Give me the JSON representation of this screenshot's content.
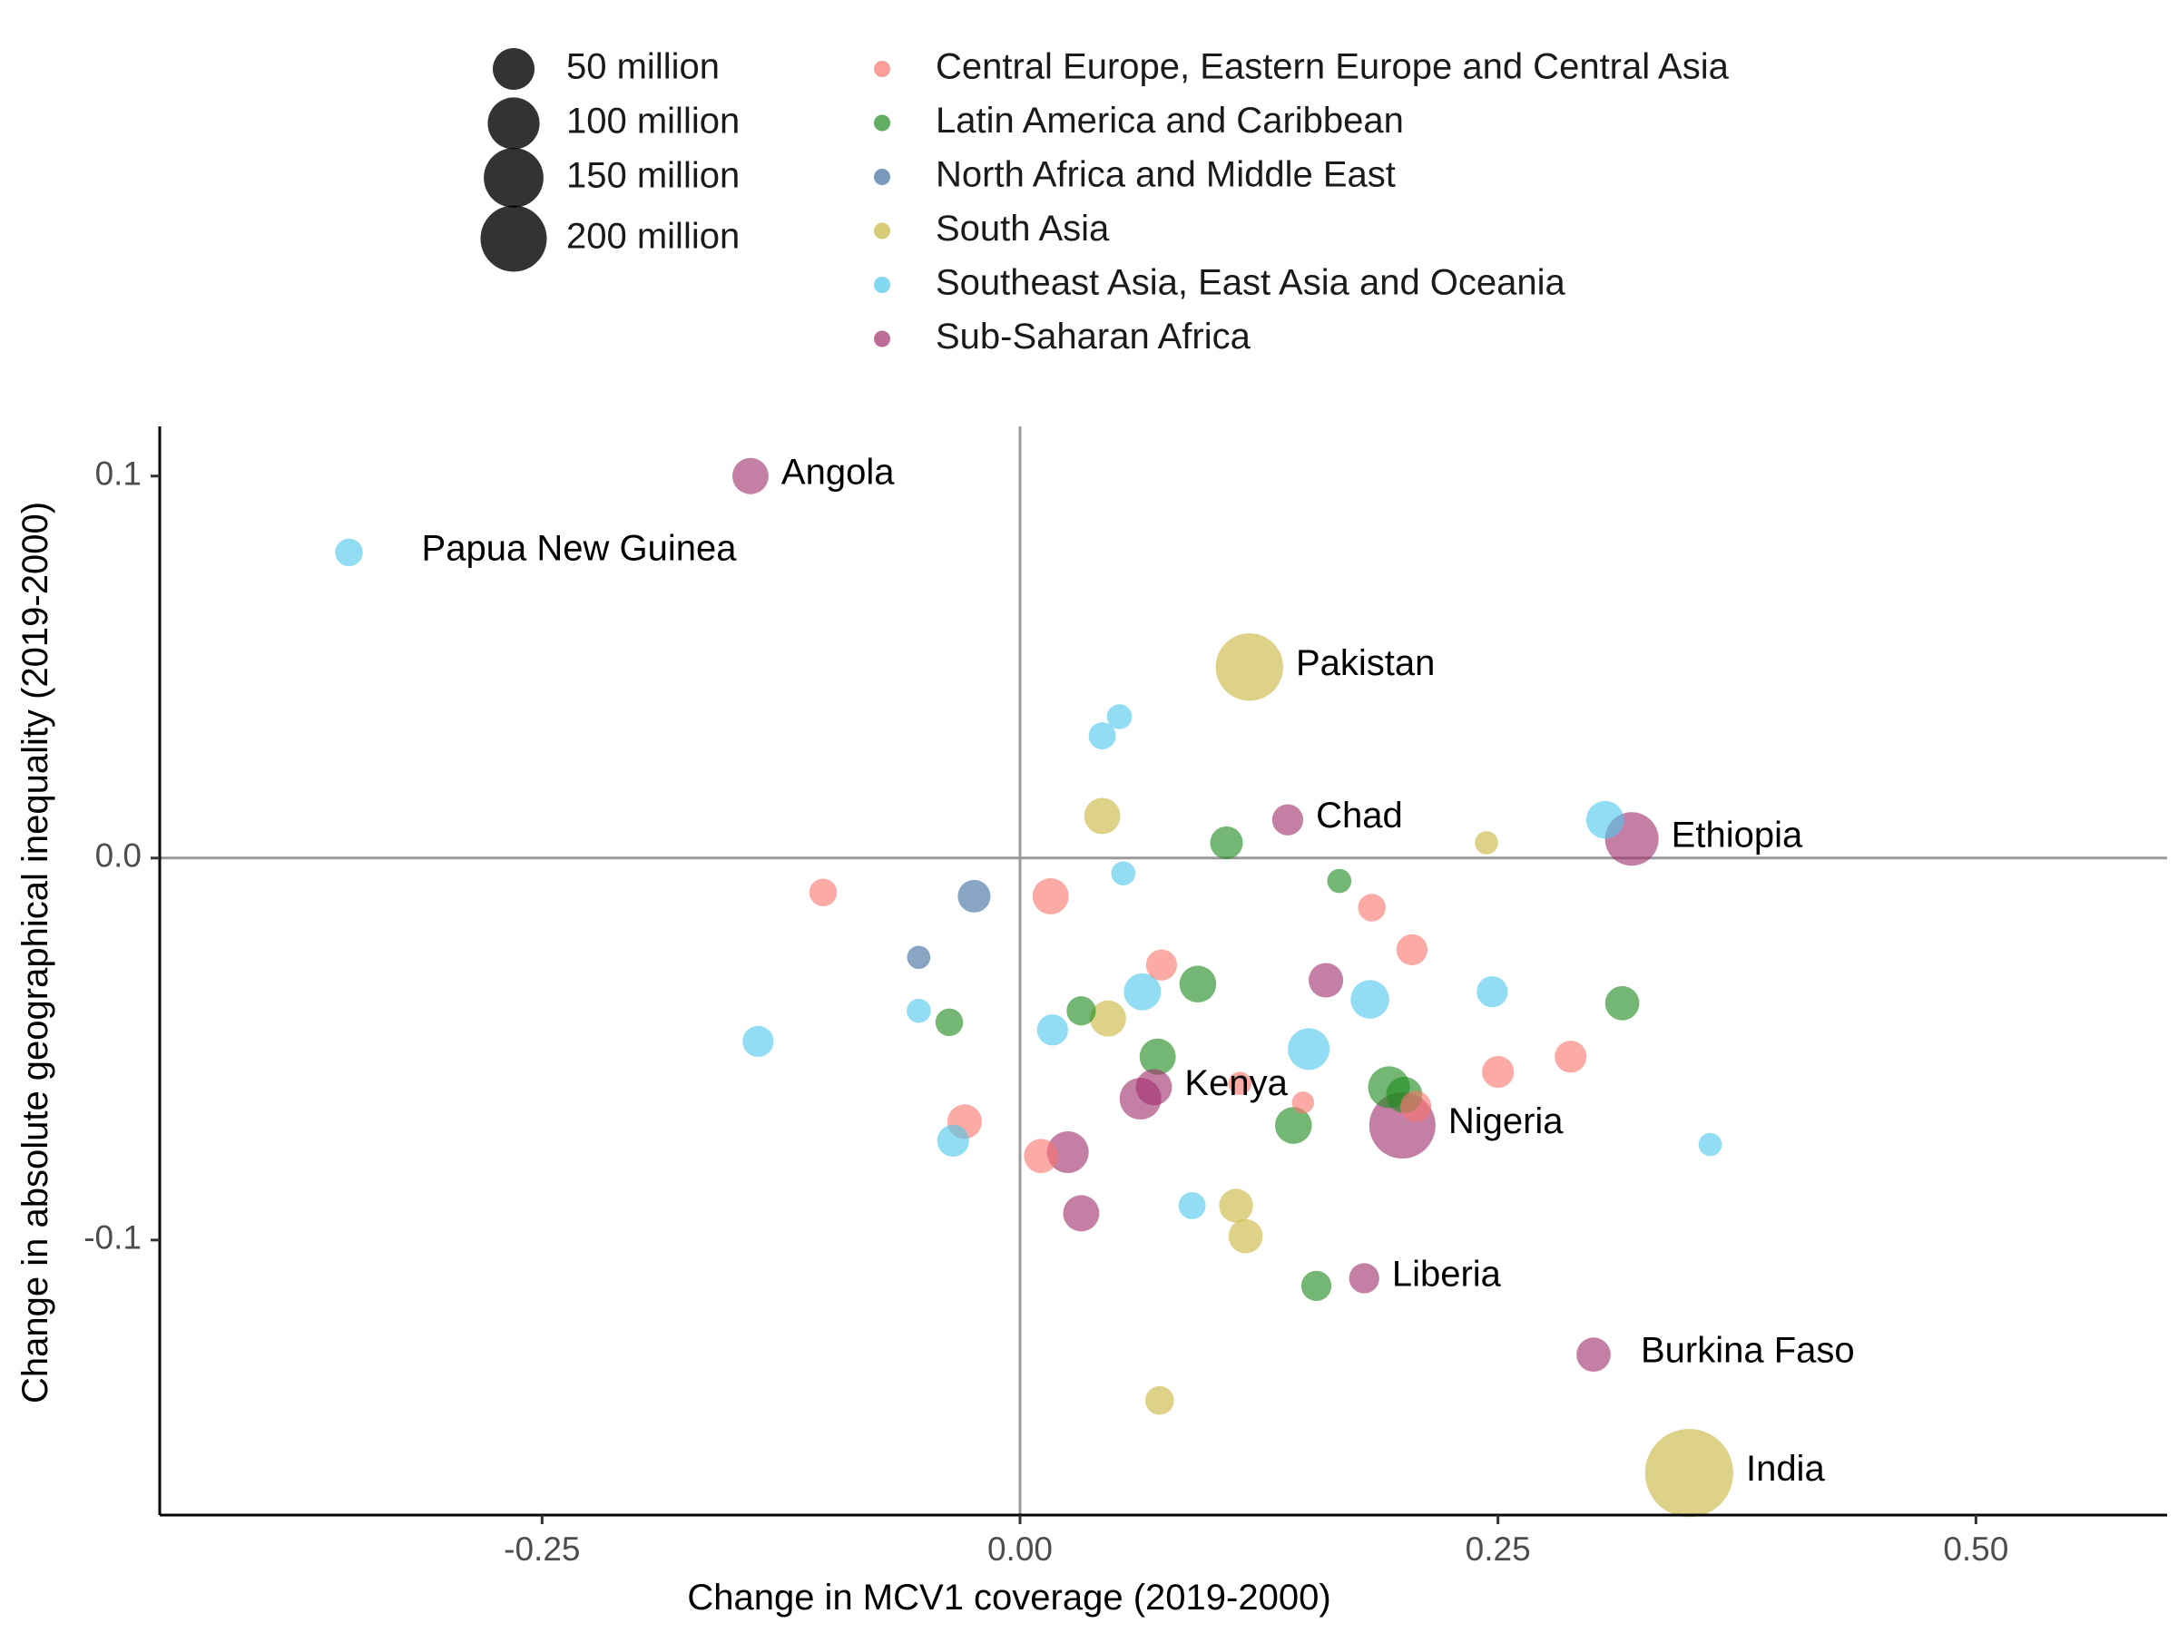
{
  "chart_data": {
    "type": "scatter",
    "xlabel": "Change in MCV1 coverage (2019-2000)",
    "ylabel": "Change in absolute geographical inequality (2019-2000)",
    "xlim": [
      -0.45,
      0.6
    ],
    "ylim": [
      -0.172,
      0.113
    ],
    "x_ticks": [
      -0.25,
      0.0,
      0.25,
      0.5
    ],
    "x_tick_labels": [
      "-0.25",
      "0.00",
      "0.25",
      "0.50"
    ],
    "y_ticks": [
      0.1,
      0.0,
      -0.1
    ],
    "y_tick_labels": [
      "0.1",
      "0.0",
      "-0.1"
    ],
    "reference_lines": {
      "x": 0,
      "y": 0
    },
    "grid": false,
    "legend_position": "top",
    "size_legend": {
      "title": "",
      "entries": [
        {
          "label": "50 million",
          "value": 50
        },
        {
          "label": "100 million",
          "value": 100
        },
        {
          "label": "150 million",
          "value": 150
        },
        {
          "label": "200 million",
          "value": 200
        }
      ]
    },
    "regions": [
      {
        "name": "Central Europe, Eastern Europe and Central Asia",
        "color": "#F8766D"
      },
      {
        "name": "Latin America and Caribbean",
        "color": "#1E8A1E"
      },
      {
        "name": "North Africa and Middle East",
        "color": "#3F6E9E"
      },
      {
        "name": "South Asia",
        "color": "#C9B63F"
      },
      {
        "name": "Southeast Asia, East Asia and Oceania",
        "color": "#4FC8EC"
      },
      {
        "name": "Sub-Saharan Africa",
        "color": "#A0306E"
      }
    ],
    "points": [
      {
        "x": -0.141,
        "y": 0.1,
        "region": 5,
        "pop": 30,
        "label": "Angola"
      },
      {
        "x": -0.351,
        "y": 0.08,
        "region": 4,
        "pop": 9,
        "label": "Papua New Guinea"
      },
      {
        "x": 0.12,
        "y": 0.05,
        "region": 3,
        "pop": 210,
        "label": "Pakistan"
      },
      {
        "x": 0.052,
        "y": 0.037,
        "region": 4,
        "pop": 5
      },
      {
        "x": 0.043,
        "y": 0.032,
        "region": 4,
        "pop": 8
      },
      {
        "x": 0.043,
        "y": 0.011,
        "region": 3,
        "pop": 30
      },
      {
        "x": 0.14,
        "y": 0.01,
        "region": 5,
        "pop": 16,
        "label": "Chad"
      },
      {
        "x": 0.108,
        "y": 0.004,
        "region": 1,
        "pop": 20
      },
      {
        "x": 0.244,
        "y": 0.004,
        "region": 3,
        "pop": 3
      },
      {
        "x": 0.306,
        "y": 0.01,
        "region": 4,
        "pop": 35
      },
      {
        "x": 0.32,
        "y": 0.005,
        "region": 5,
        "pop": 110,
        "label": "Ethiopia"
      },
      {
        "x": 0.054,
        "y": -0.004,
        "region": 4,
        "pop": 4
      },
      {
        "x": 0.167,
        "y": -0.006,
        "region": 1,
        "pop": 4
      },
      {
        "x": -0.103,
        "y": -0.009,
        "region": 0,
        "pop": 9
      },
      {
        "x": -0.024,
        "y": -0.01,
        "region": 2,
        "pop": 20
      },
      {
        "x": 0.016,
        "y": -0.01,
        "region": 0,
        "pop": 30
      },
      {
        "x": 0.184,
        "y": -0.013,
        "region": 0,
        "pop": 9
      },
      {
        "x": 0.205,
        "y": -0.024,
        "region": 0,
        "pop": 16
      },
      {
        "x": -0.053,
        "y": -0.026,
        "region": 2,
        "pop": 3
      },
      {
        "x": 0.074,
        "y": -0.028,
        "region": 0,
        "pop": 16
      },
      {
        "x": 0.093,
        "y": -0.033,
        "region": 1,
        "pop": 32
      },
      {
        "x": 0.16,
        "y": -0.032,
        "region": 5,
        "pop": 25
      },
      {
        "x": 0.064,
        "y": -0.035,
        "region": 4,
        "pop": 33
      },
      {
        "x": 0.183,
        "y": -0.037,
        "region": 4,
        "pop": 38
      },
      {
        "x": 0.247,
        "y": -0.035,
        "region": 4,
        "pop": 16
      },
      {
        "x": 0.315,
        "y": -0.038,
        "region": 1,
        "pop": 24
      },
      {
        "x": -0.053,
        "y": -0.04,
        "region": 4,
        "pop": 4
      },
      {
        "x": -0.037,
        "y": -0.043,
        "region": 1,
        "pop": 9
      },
      {
        "x": 0.032,
        "y": -0.04,
        "region": 1,
        "pop": 12
      },
      {
        "x": 0.046,
        "y": -0.042,
        "region": 3,
        "pop": 30
      },
      {
        "x": 0.017,
        "y": -0.045,
        "region": 4,
        "pop": 16
      },
      {
        "x": -0.137,
        "y": -0.048,
        "region": 4,
        "pop": 16
      },
      {
        "x": 0.072,
        "y": -0.052,
        "region": 1,
        "pop": 30
      },
      {
        "x": 0.151,
        "y": -0.05,
        "region": 4,
        "pop": 50
      },
      {
        "x": 0.25,
        "y": -0.056,
        "region": 0,
        "pop": 18
      },
      {
        "x": 0.288,
        "y": -0.052,
        "region": 0,
        "pop": 18
      },
      {
        "x": 0.07,
        "y": -0.06,
        "region": 5,
        "pop": 30,
        "label": "Kenya"
      },
      {
        "x": 0.063,
        "y": -0.063,
        "region": 5,
        "pop": 50
      },
      {
        "x": 0.115,
        "y": -0.059,
        "region": 0,
        "pop": 3
      },
      {
        "x": 0.148,
        "y": -0.064,
        "region": 0,
        "pop": 2
      },
      {
        "x": 0.193,
        "y": -0.06,
        "region": 1,
        "pop": 50
      },
      {
        "x": 0.201,
        "y": -0.062,
        "region": 1,
        "pop": 30
      },
      {
        "x": 0.207,
        "y": -0.065,
        "region": 0,
        "pop": 16
      },
      {
        "x": 0.2,
        "y": -0.07,
        "region": 5,
        "pop": 200,
        "label": "Nigeria"
      },
      {
        "x": -0.029,
        "y": -0.069,
        "region": 0,
        "pop": 25
      },
      {
        "x": 0.143,
        "y": -0.07,
        "region": 1,
        "pop": 32
      },
      {
        "x": -0.035,
        "y": -0.074,
        "region": 4,
        "pop": 18
      },
      {
        "x": 0.011,
        "y": -0.078,
        "region": 0,
        "pop": 24
      },
      {
        "x": 0.025,
        "y": -0.077,
        "region": 5,
        "pop": 50
      },
      {
        "x": 0.032,
        "y": -0.093,
        "region": 5,
        "pop": 30
      },
      {
        "x": 0.09,
        "y": -0.091,
        "region": 4,
        "pop": 8
      },
      {
        "x": 0.113,
        "y": -0.091,
        "region": 3,
        "pop": 23
      },
      {
        "x": 0.118,
        "y": -0.099,
        "region": 3,
        "pop": 24
      },
      {
        "x": 0.155,
        "y": -0.112,
        "region": 1,
        "pop": 14
      },
      {
        "x": 0.18,
        "y": -0.11,
        "region": 5,
        "pop": 14,
        "label": "Liberia"
      },
      {
        "x": 0.073,
        "y": -0.142,
        "region": 3,
        "pop": 11
      },
      {
        "x": 0.3,
        "y": -0.13,
        "region": 5,
        "pop": 24,
        "label": "Burkina Faso"
      },
      {
        "x": 0.361,
        "y": -0.075,
        "region": 4,
        "pop": 3
      },
      {
        "x": 0.35,
        "y": -0.161,
        "region": 3,
        "pop": 420,
        "label": "India"
      }
    ]
  }
}
